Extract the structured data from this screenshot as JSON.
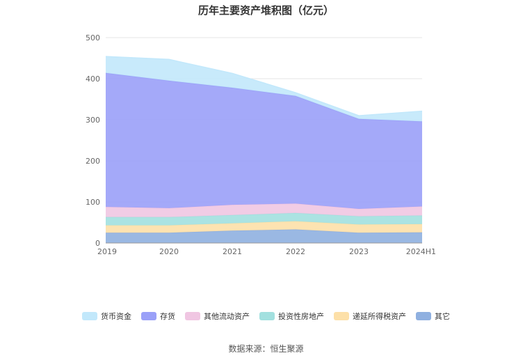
{
  "title": "历年主要资产堆积图（亿元）",
  "source": "数据来源：恒生聚源",
  "chart_data": {
    "type": "area",
    "stacked": true,
    "categories": [
      "2019",
      "2020",
      "2021",
      "2022",
      "2023",
      "2024H1"
    ],
    "y_ticks": [
      0,
      100,
      200,
      300,
      400,
      500
    ],
    "ylim": [
      0,
      500
    ],
    "grid": true,
    "legend_position": "bottom",
    "series": [
      {
        "name": "其它",
        "color": "#8fb0e0",
        "values": [
          25,
          25,
          30,
          33,
          25,
          26
        ]
      },
      {
        "name": "递延所得税资产",
        "color": "#fde0a8",
        "values": [
          18,
          18,
          18,
          20,
          20,
          20
        ]
      },
      {
        "name": "投资性房地产",
        "color": "#a2e0df",
        "values": [
          20,
          20,
          20,
          20,
          20,
          21
        ]
      },
      {
        "name": "其他流动资产",
        "color": "#f0c6e2",
        "values": [
          25,
          22,
          25,
          23,
          18,
          22
        ]
      },
      {
        "name": "存货",
        "color": "#9aa0f8",
        "values": [
          326,
          310,
          285,
          262,
          219,
          207
        ]
      },
      {
        "name": "货币资金",
        "color": "#c2e8fb",
        "values": [
          40,
          52,
          35,
          8,
          8,
          25
        ]
      }
    ]
  }
}
